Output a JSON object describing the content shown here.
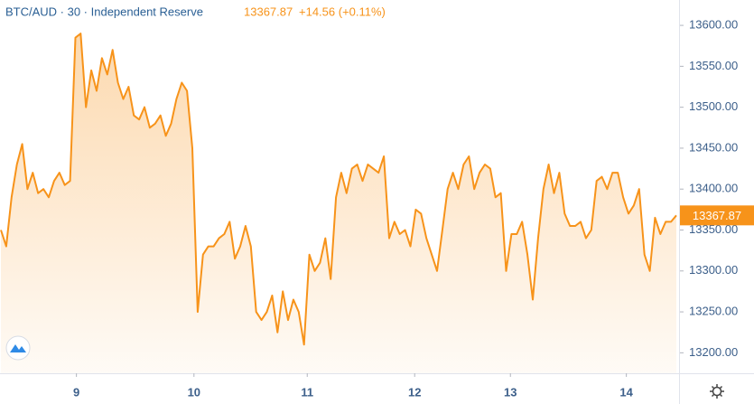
{
  "chart_data": {
    "type": "area",
    "title": "BTC/AUD · 30 · Independent Reserve",
    "last_price": 13367.87,
    "change": "+14.56 (+0.11%)",
    "color": "#f7931a",
    "values": [
      13350,
      13330,
      13390,
      13430,
      13455,
      13400,
      13420,
      13395,
      13400,
      13390,
      13410,
      13420,
      13405,
      13410,
      13585,
      13590,
      13500,
      13545,
      13520,
      13560,
      13540,
      13570,
      13530,
      13510,
      13525,
      13490,
      13485,
      13500,
      13475,
      13480,
      13490,
      13465,
      13480,
      13510,
      13530,
      13520,
      13450,
      13250,
      13320,
      13330,
      13330,
      13340,
      13345,
      13360,
      13315,
      13330,
      13355,
      13330,
      13250,
      13240,
      13250,
      13270,
      13225,
      13275,
      13240,
      13265,
      13250,
      13210,
      13320,
      13300,
      13310,
      13340,
      13290,
      13390,
      13420,
      13395,
      13425,
      13430,
      13410,
      13430,
      13425,
      13420,
      13440,
      13340,
      13360,
      13345,
      13350,
      13330,
      13375,
      13370,
      13340,
      13320,
      13300,
      13350,
      13400,
      13420,
      13400,
      13430,
      13440,
      13400,
      13420,
      13430,
      13425,
      13390,
      13395,
      13300,
      13345,
      13345,
      13360,
      13320,
      13265,
      13340,
      13400,
      13430,
      13395,
      13420,
      13370,
      13355,
      13355,
      13360,
      13340,
      13350,
      13410,
      13415,
      13400,
      13420,
      13420,
      13390,
      13370,
      13380,
      13400,
      13320,
      13300,
      13365,
      13345,
      13360,
      13360,
      13367.87
    ],
    "xlim": [
      0,
      127
    ],
    "xticks": [
      {
        "value": 14.2,
        "label": "9"
      },
      {
        "value": 36.3,
        "label": "10"
      },
      {
        "value": 57.6,
        "label": "11"
      },
      {
        "value": 77.8,
        "label": "12"
      },
      {
        "value": 95.8,
        "label": "13"
      },
      {
        "value": 117.6,
        "label": "14"
      }
    ],
    "ylim": [
      13175,
      13631
    ],
    "yticks": [
      {
        "value": 13200,
        "label": "13200.00"
      },
      {
        "value": 13250,
        "label": "13250.00"
      },
      {
        "value": 13300,
        "label": "13300.00"
      },
      {
        "value": 13350,
        "label": "13350.00"
      },
      {
        "value": 13400,
        "label": "13400.00"
      },
      {
        "value": 13450,
        "label": "13450.00"
      },
      {
        "value": 13500,
        "label": "13500.00"
      },
      {
        "value": 13550,
        "label": "13550.00"
      },
      {
        "value": 13600,
        "label": "13600.00"
      }
    ]
  }
}
